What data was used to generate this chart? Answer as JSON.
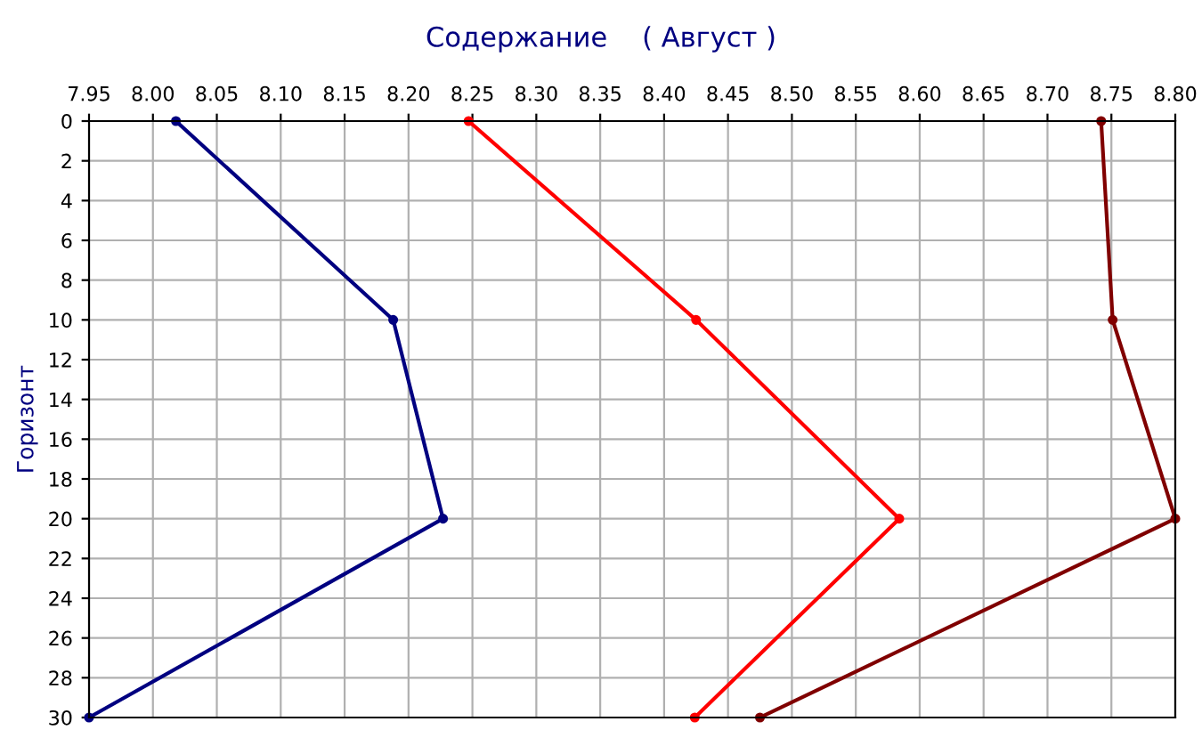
{
  "chart_data": {
    "type": "line",
    "title": "Содержание    ( Август )",
    "ylabel": "Горизонт",
    "xlim": [
      7.95,
      8.8
    ],
    "xticks": [
      {
        "value": 7.95,
        "label": "7.95"
      },
      {
        "value": 8.0,
        "label": "8.00"
      },
      {
        "value": 8.05,
        "label": "8.05"
      },
      {
        "value": 8.1,
        "label": "8.10"
      },
      {
        "value": 8.15,
        "label": "8.15"
      },
      {
        "value": 8.2,
        "label": "8.20"
      },
      {
        "value": 8.25,
        "label": "8.25"
      },
      {
        "value": 8.3,
        "label": "8.30"
      },
      {
        "value": 8.35,
        "label": "8.35"
      },
      {
        "value": 8.4,
        "label": "8.40"
      },
      {
        "value": 8.45,
        "label": "8.45"
      },
      {
        "value": 8.5,
        "label": "8.50"
      },
      {
        "value": 8.55,
        "label": "8.55"
      },
      {
        "value": 8.6,
        "label": "8.60"
      },
      {
        "value": 8.65,
        "label": "8.65"
      },
      {
        "value": 8.7,
        "label": "8.70"
      },
      {
        "value": 8.75,
        "label": "8.75"
      },
      {
        "value": 8.8,
        "label": "8.80"
      }
    ],
    "ylim": [
      30,
      0
    ],
    "yticks": [
      0,
      2,
      4,
      6,
      8,
      10,
      12,
      14,
      16,
      18,
      20,
      22,
      24,
      26,
      28,
      30
    ],
    "grid": true,
    "marker": "circle",
    "line_style": "solid",
    "legend": false,
    "series": [
      {
        "color": "#000080",
        "x": [
          8.018,
          8.188,
          8.227,
          7.95
        ],
        "values": [
          0,
          10,
          20,
          30
        ]
      },
      {
        "color": "#ff0000",
        "x": [
          8.247,
          8.425,
          8.584,
          8.424
        ],
        "values": [
          0,
          10,
          20,
          30
        ]
      },
      {
        "color": "#800000",
        "x": [
          8.742,
          8.751,
          8.8,
          8.475
        ],
        "values": [
          0,
          10,
          20,
          30
        ]
      }
    ]
  }
}
